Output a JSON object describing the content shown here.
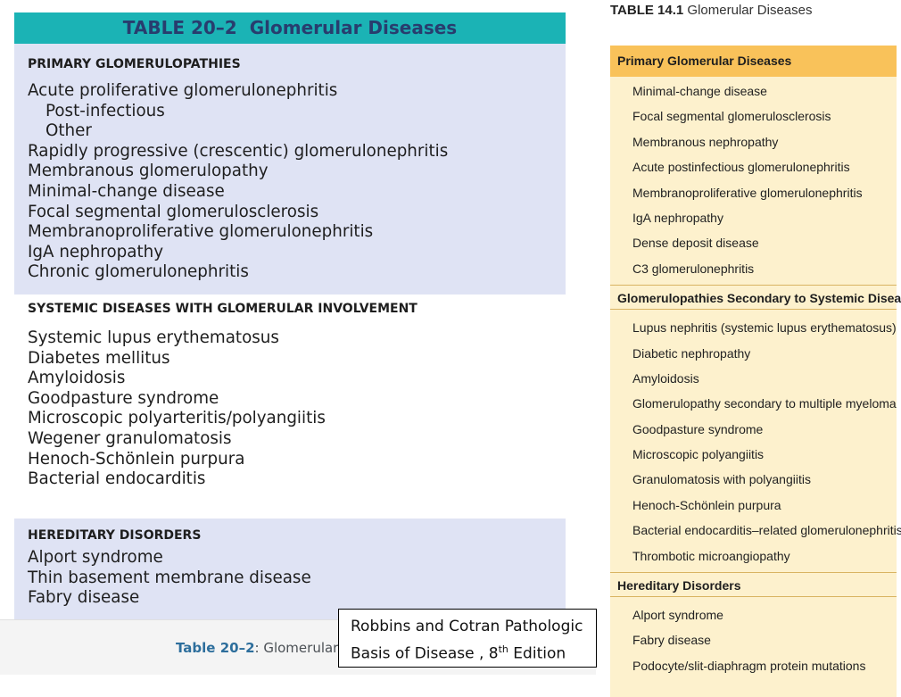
{
  "left_table": {
    "number": "TABLE 20–2",
    "title": "Glomerular Diseases",
    "sections": [
      {
        "heading": "PRIMARY GLOMERULOPATHIES",
        "items": [
          {
            "text": "Acute proliferative glomerulonephritis",
            "sub": false
          },
          {
            "text": "Post-infectious",
            "sub": true
          },
          {
            "text": "Other",
            "sub": true
          },
          {
            "text": "Rapidly progressive (crescentic) glomerulonephritis",
            "sub": false
          },
          {
            "text": "Membranous glomerulopathy",
            "sub": false
          },
          {
            "text": "Minimal-change disease",
            "sub": false
          },
          {
            "text": "Focal segmental glomerulosclerosis",
            "sub": false
          },
          {
            "text": "Membranoproliferative glomerulonephritis",
            "sub": false
          },
          {
            "text": "IgA nephropathy",
            "sub": false
          },
          {
            "text": "Chronic glomerulonephritis",
            "sub": false
          }
        ]
      },
      {
        "heading": "SYSTEMIC DISEASES WITH GLOMERULAR INVOLVEMENT",
        "items": [
          {
            "text": "Systemic lupus erythematosus",
            "sub": false
          },
          {
            "text": "Diabetes mellitus",
            "sub": false
          },
          {
            "text": "Amyloidosis",
            "sub": false
          },
          {
            "text": "Goodpasture syndrome",
            "sub": false
          },
          {
            "text": "Microscopic polyarteritis/polyangiitis",
            "sub": false
          },
          {
            "text": "Wegener granulomatosis",
            "sub": false
          },
          {
            "text": "Henoch-Schönlein purpura",
            "sub": false
          },
          {
            "text": "Bacterial endocarditis",
            "sub": false
          }
        ]
      },
      {
        "heading": "HEREDITARY DISORDERS",
        "items": [
          {
            "text": "Alport syndrome",
            "sub": false
          },
          {
            "text": "Thin basement membrane disease",
            "sub": false
          },
          {
            "text": "Fabry disease",
            "sub": false
          }
        ]
      }
    ],
    "colors": {
      "teal": "#1bb3b5",
      "band": "#dfe3f4",
      "header_text": "#283d6e"
    }
  },
  "caption": {
    "label": "Table 20–2",
    "text": ": Glomerular"
  },
  "citation": {
    "line1": "Robbins and Cotran Pathologic",
    "line2_pre": "Basis of Disease , 8",
    "line2_sup": "th",
    "line2_post": " Edition"
  },
  "right_table": {
    "number": "TABLE 14.1",
    "title": "Glomerular Diseases",
    "sections": [
      {
        "heading": "Primary Glomerular Diseases",
        "items": [
          "Minimal-change disease",
          "Focal segmental glomerulosclerosis",
          "Membranous nephropathy",
          "Acute postinfectious glomerulonephritis",
          "Membranoproliferative glomerulonephritis",
          "IgA nephropathy",
          "Dense deposit disease",
          "C3 glomerulonephritis"
        ]
      },
      {
        "heading": "Glomerulopathies Secondary to Systemic Diseases",
        "items": [
          "Lupus nephritis (systemic lupus erythematosus)",
          "Diabetic nephropathy",
          "Amyloidosis",
          "Glomerulopathy secondary to multiple myeloma",
          "Goodpasture syndrome",
          "Microscopic polyangiitis",
          "Granulomatosis with polyangiitis",
          "Henoch-Schönlein purpura",
          "Bacterial endocarditis–related glomerulonephritis",
          "Thrombotic microangiopathy"
        ]
      },
      {
        "heading": "Hereditary Disorders",
        "items": [
          "Alport syndrome",
          "Fabry disease",
          "Podocyte/slit-diaphragm protein mutations"
        ]
      }
    ],
    "colors": {
      "orange": "#f9c25a",
      "cream": "#fdf1cd"
    }
  }
}
